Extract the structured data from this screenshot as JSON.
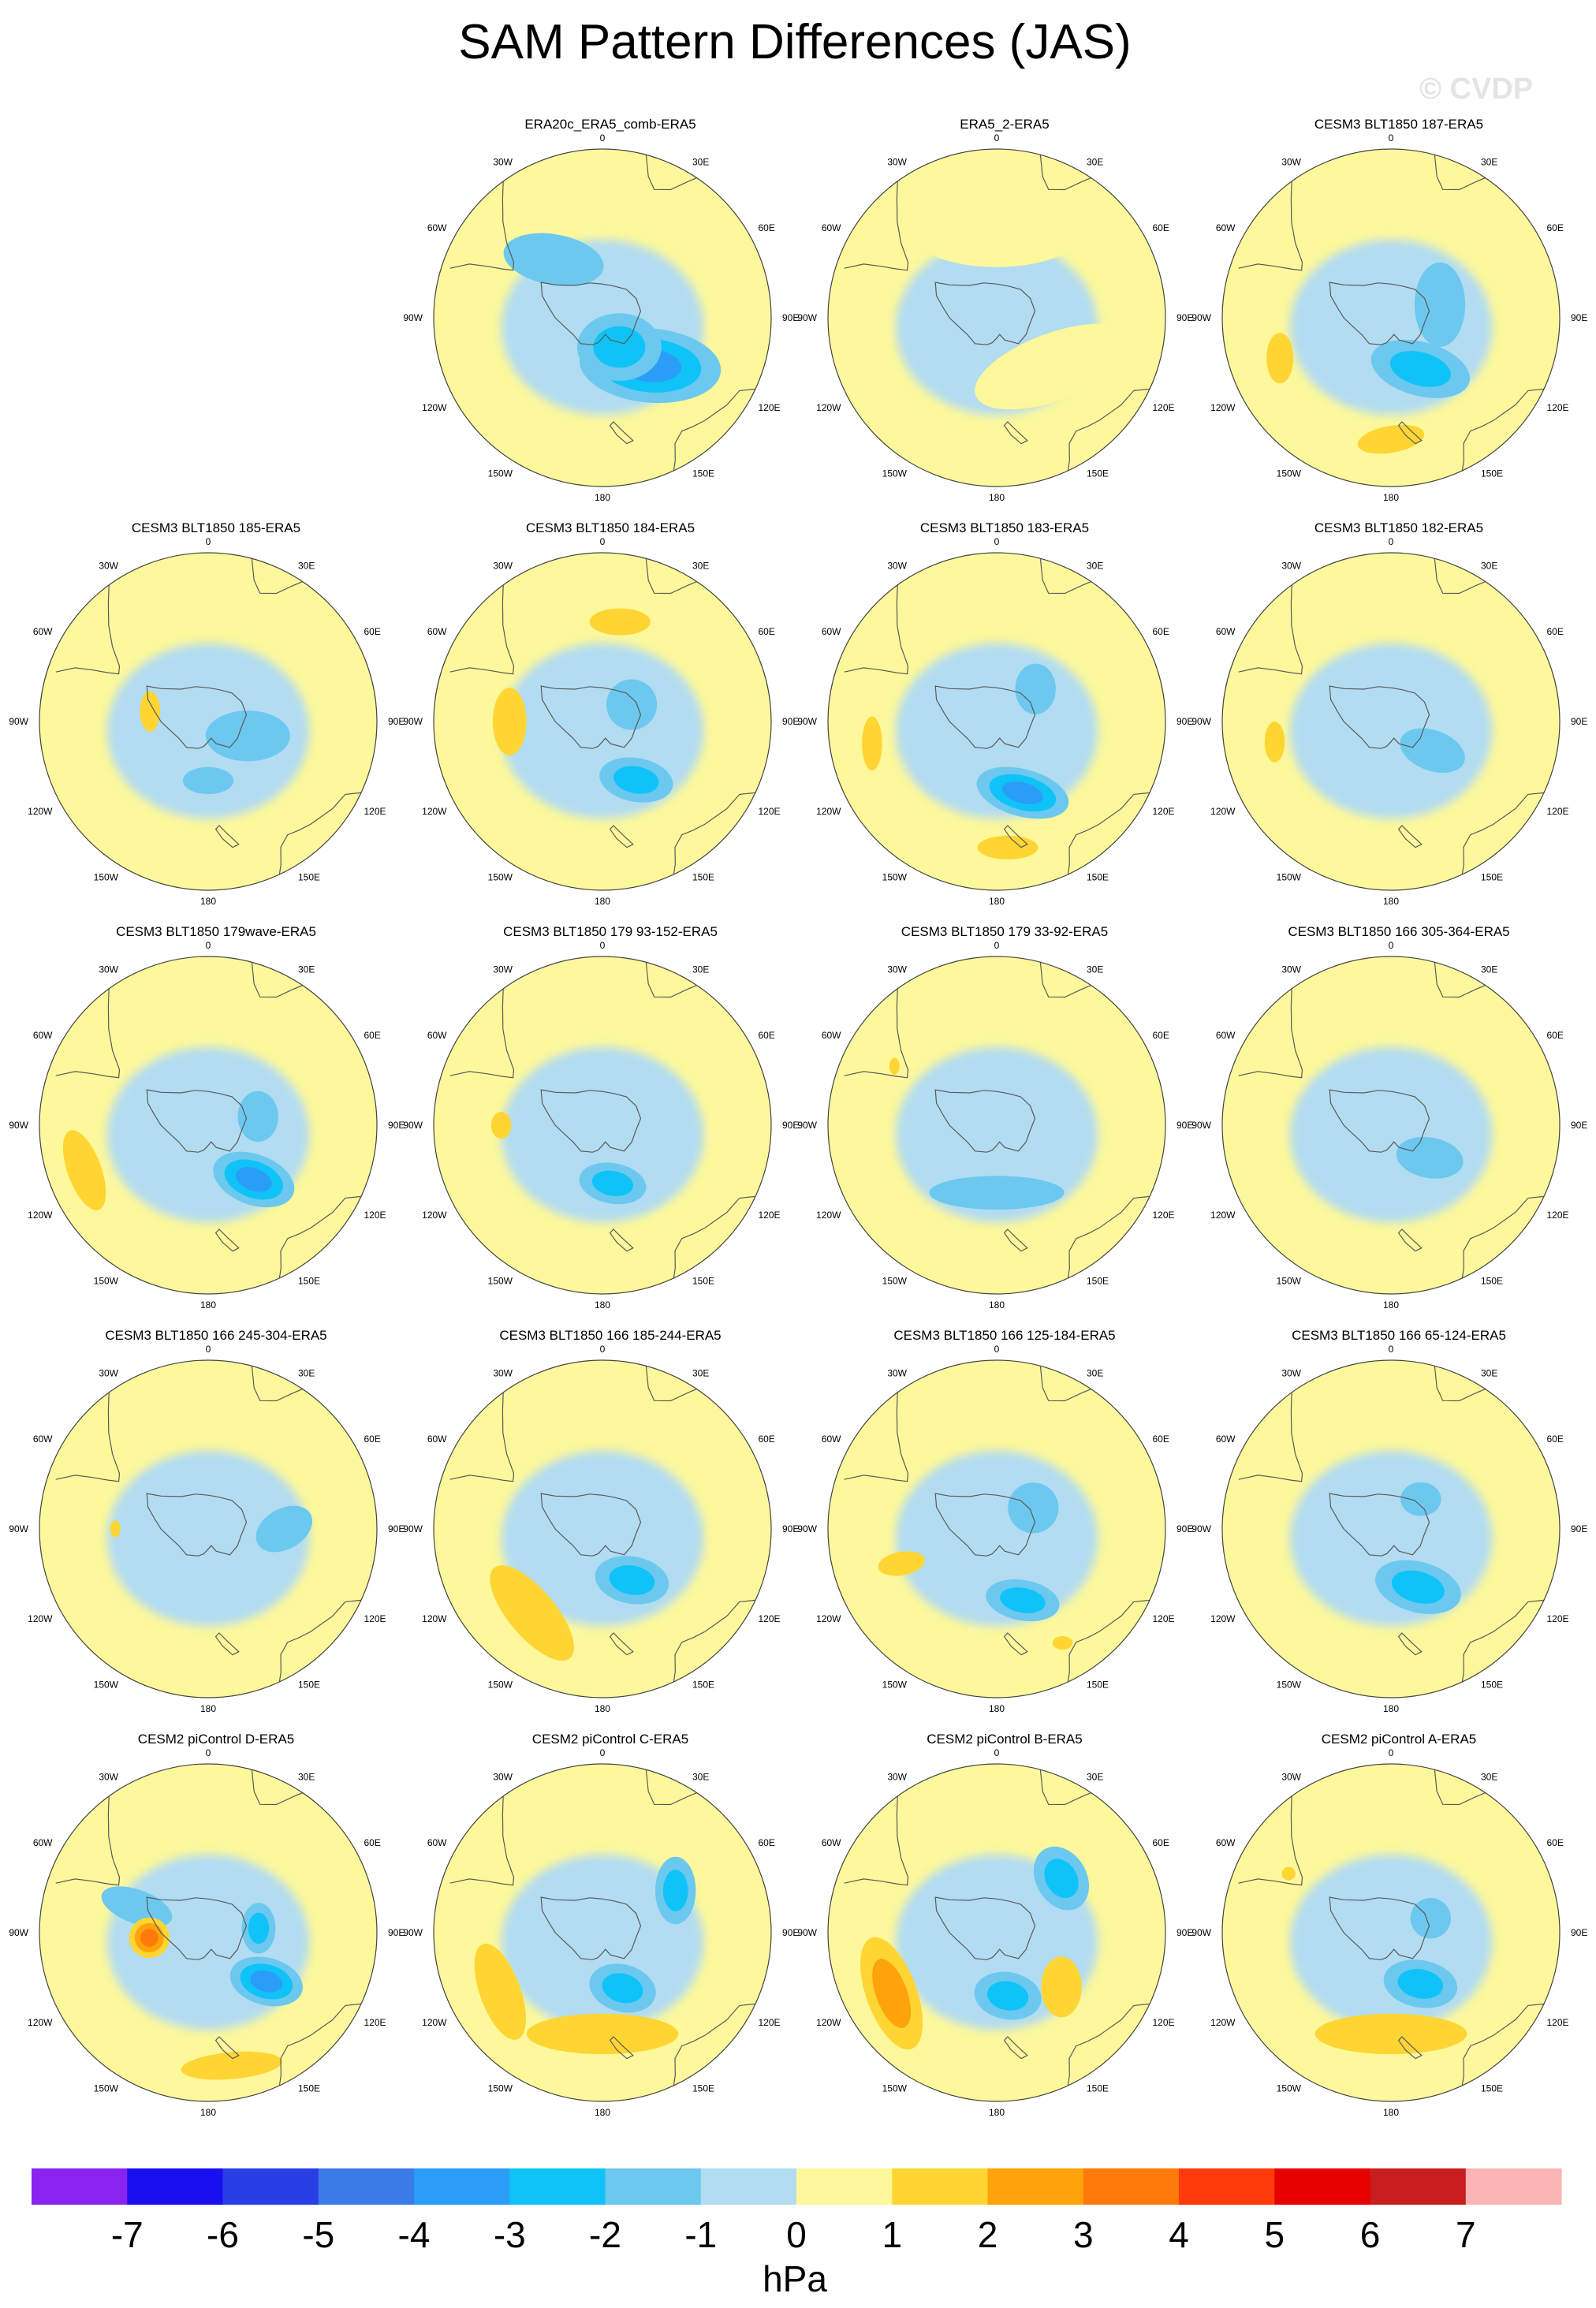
{
  "title": "SAM Pattern Differences (JAS)",
  "watermark": "© CVDP",
  "colors": {
    "land_outline": "#5a5a5a",
    "map_frame": "#444444"
  },
  "lon_labels": [
    "0",
    "30E",
    "60E",
    "90E",
    "120E",
    "150E",
    "180",
    "150W",
    "120W",
    "90W",
    "60W",
    "30W"
  ],
  "panels": [
    {
      "title": "ERA20c_ERA5_comb-ERA5",
      "row": 0,
      "col": 1,
      "features": [
        {
          "lon": 135,
          "r": 0.4,
          "val": -3.5,
          "rx": 0.42,
          "ry": 0.22,
          "rot": 5
        },
        {
          "lon": 150,
          "r": 0.2,
          "val": -3.0,
          "rx": 0.25,
          "ry": 0.2,
          "rot": 0
        },
        {
          "lon": -40,
          "r": 0.45,
          "val": -1.2,
          "rx": 0.3,
          "ry": 0.15,
          "rot": 10
        }
      ]
    },
    {
      "title": "ERA5_2-ERA5",
      "row": 0,
      "col": 2,
      "features": [
        {
          "lon": 0,
          "r": 0.55,
          "val": 0.5,
          "rx": 0.55,
          "ry": 0.25,
          "rot": 0
        },
        {
          "lon": 130,
          "r": 0.45,
          "val": 0.5,
          "rx": 0.5,
          "ry": 0.2,
          "rot": -20
        }
      ]
    },
    {
      "title": "CESM3 BLT1850 187-ERA5",
      "row": 0,
      "col": 3,
      "features": [
        {
          "lon": 150,
          "r": 0.35,
          "val": -3.0,
          "rx": 0.3,
          "ry": 0.16,
          "rot": 15
        },
        {
          "lon": 75,
          "r": 0.3,
          "val": -1.5,
          "rx": 0.15,
          "ry": 0.25,
          "rot": 0
        },
        {
          "lon": 180,
          "r": 0.72,
          "val": 1.8,
          "rx": 0.2,
          "ry": 0.08,
          "rot": -10
        },
        {
          "lon": -110,
          "r": 0.7,
          "val": 1.5,
          "rx": 0.08,
          "ry": 0.15,
          "rot": 0
        }
      ]
    },
    {
      "title": "CESM3 BLT1850 185-ERA5",
      "row": 1,
      "col": 0,
      "features": [
        {
          "lon": 110,
          "r": 0.25,
          "val": -1.5,
          "rx": 0.25,
          "ry": 0.15,
          "rot": 0
        },
        {
          "lon": 180,
          "r": 0.35,
          "val": -1.6,
          "rx": 0.15,
          "ry": 0.08,
          "rot": 0
        },
        {
          "lon": -80,
          "r": 0.35,
          "val": 1.5,
          "rx": 0.06,
          "ry": 0.12,
          "rot": 0
        }
      ]
    },
    {
      "title": "CESM3 BLT1850 184-ERA5",
      "row": 1,
      "col": 1,
      "features": [
        {
          "lon": 150,
          "r": 0.4,
          "val": -3.0,
          "rx": 0.22,
          "ry": 0.13,
          "rot": 10
        },
        {
          "lon": 60,
          "r": 0.2,
          "val": -1.8,
          "rx": 0.15,
          "ry": 0.15,
          "rot": 0
        },
        {
          "lon": -90,
          "r": 0.55,
          "val": 1.8,
          "rx": 0.1,
          "ry": 0.2,
          "rot": 0
        },
        {
          "lon": 10,
          "r": 0.6,
          "val": 1.6,
          "rx": 0.18,
          "ry": 0.08,
          "rot": 0
        }
      ]
    },
    {
      "title": "CESM3 BLT1850 183-ERA5",
      "row": 1,
      "col": 2,
      "features": [
        {
          "lon": 160,
          "r": 0.45,
          "val": -3.5,
          "rx": 0.28,
          "ry": 0.14,
          "rot": 15
        },
        {
          "lon": 50,
          "r": 0.3,
          "val": -1.5,
          "rx": 0.12,
          "ry": 0.15,
          "rot": 0
        },
        {
          "lon": -100,
          "r": 0.75,
          "val": 1.6,
          "rx": 0.06,
          "ry": 0.16,
          "rot": 0
        },
        {
          "lon": 175,
          "r": 0.75,
          "val": 1.6,
          "rx": 0.18,
          "ry": 0.07,
          "rot": 0
        }
      ]
    },
    {
      "title": "CESM3 BLT1850 182-ERA5",
      "row": 1,
      "col": 3,
      "features": [
        {
          "lon": 125,
          "r": 0.3,
          "val": -2.0,
          "rx": 0.2,
          "ry": 0.12,
          "rot": 20
        },
        {
          "lon": -100,
          "r": 0.7,
          "val": 1.5,
          "rx": 0.06,
          "ry": 0.12,
          "rot": 0
        }
      ]
    },
    {
      "title": "CESM3 BLT1850 179wave-ERA5",
      "row": 2,
      "col": 0,
      "features": [
        {
          "lon": 140,
          "r": 0.42,
          "val": -3.5,
          "rx": 0.25,
          "ry": 0.15,
          "rot": 20
        },
        {
          "lon": 80,
          "r": 0.3,
          "val": -1.5,
          "rx": 0.12,
          "ry": 0.15,
          "rot": 0
        },
        {
          "lon": -110,
          "r": 0.78,
          "val": 1.8,
          "rx": 0.1,
          "ry": 0.25,
          "rot": -20
        }
      ]
    },
    {
      "title": "CESM3 BLT1850 179 93-152-ERA5",
      "row": 2,
      "col": 1,
      "features": [
        {
          "lon": 170,
          "r": 0.35,
          "val": -3.0,
          "rx": 0.2,
          "ry": 0.12,
          "rot": 10
        },
        {
          "lon": -90,
          "r": 0.6,
          "val": 1.6,
          "rx": 0.06,
          "ry": 0.08,
          "rot": 0
        }
      ]
    },
    {
      "title": "CESM3 BLT1850 179 33-92-ERA5",
      "row": 2,
      "col": 2,
      "features": [
        {
          "lon": 180,
          "r": 0.4,
          "val": -2.0,
          "rx": 0.4,
          "ry": 0.1,
          "rot": 0
        },
        {
          "lon": -60,
          "r": 0.7,
          "val": 1.5,
          "rx": 0.03,
          "ry": 0.05,
          "rot": 0
        }
      ]
    },
    {
      "title": "CESM3 BLT1850 166 305-364-ERA5",
      "row": 2,
      "col": 3,
      "features": [
        {
          "lon": 130,
          "r": 0.3,
          "val": -1.6,
          "rx": 0.2,
          "ry": 0.12,
          "rot": 10
        }
      ]
    },
    {
      "title": "CESM3 BLT1850 166 245-304-ERA5",
      "row": 3,
      "col": 0,
      "features": [
        {
          "lon": 90,
          "r": 0.45,
          "val": -1.6,
          "rx": 0.18,
          "ry": 0.12,
          "rot": -30
        },
        {
          "lon": -90,
          "r": 0.55,
          "val": 1.5,
          "rx": 0.03,
          "ry": 0.05,
          "rot": 0
        }
      ]
    },
    {
      "title": "CESM3 BLT1850 166 185-244-ERA5",
      "row": 3,
      "col": 1,
      "features": [
        {
          "lon": 150,
          "r": 0.35,
          "val": -3.2,
          "rx": 0.22,
          "ry": 0.14,
          "rot": 10
        },
        {
          "lon": -140,
          "r": 0.65,
          "val": 1.6,
          "rx": 0.14,
          "ry": 0.35,
          "rot": -40
        }
      ]
    },
    {
      "title": "CESM3 BLT1850 166 125-184-ERA5",
      "row": 3,
      "col": 2,
      "features": [
        {
          "lon": 160,
          "r": 0.45,
          "val": -2.5,
          "rx": 0.22,
          "ry": 0.12,
          "rot": 10
        },
        {
          "lon": 60,
          "r": 0.25,
          "val": -1.5,
          "rx": 0.15,
          "ry": 0.15,
          "rot": 0
        },
        {
          "lon": -110,
          "r": 0.6,
          "val": 1.8,
          "rx": 0.14,
          "ry": 0.07,
          "rot": -10
        },
        {
          "lon": 150,
          "r": 0.78,
          "val": 1.5,
          "rx": 0.06,
          "ry": 0.04,
          "rot": 0
        }
      ]
    },
    {
      "title": "CESM3 BLT1850 166 65-124-ERA5",
      "row": 3,
      "col": 3,
      "features": [
        {
          "lon": 155,
          "r": 0.38,
          "val": -3.2,
          "rx": 0.26,
          "ry": 0.15,
          "rot": 15
        },
        {
          "lon": 45,
          "r": 0.25,
          "val": -1.5,
          "rx": 0.12,
          "ry": 0.1,
          "rot": 0
        }
      ]
    },
    {
      "title": "CESM2 piControl D-ERA5",
      "row": 4,
      "col": 0,
      "features": [
        {
          "lon": 130,
          "r": 0.45,
          "val": -3.5,
          "rx": 0.22,
          "ry": 0.14,
          "rot": 15
        },
        {
          "lon": 85,
          "r": 0.3,
          "val": -3.0,
          "rx": 0.1,
          "ry": 0.15,
          "rot": 0
        },
        {
          "lon": -70,
          "r": 0.45,
          "val": -1.6,
          "rx": 0.22,
          "ry": 0.1,
          "rot": 20
        },
        {
          "lon": -95,
          "r": 0.35,
          "val": 3.5,
          "rx": 0.12,
          "ry": 0.12,
          "rot": 0
        },
        {
          "lon": 170,
          "r": 0.8,
          "val": 2.2,
          "rx": 0.3,
          "ry": 0.08,
          "rot": -5
        }
      ]
    },
    {
      "title": "CESM2 piControl C-ERA5",
      "row": 4,
      "col": 1,
      "features": [
        {
          "lon": 160,
          "r": 0.35,
          "val": -3.2,
          "rx": 0.2,
          "ry": 0.14,
          "rot": 15
        },
        {
          "lon": 60,
          "r": 0.5,
          "val": -3.0,
          "rx": 0.12,
          "ry": 0.2,
          "rot": 0
        },
        {
          "lon": 180,
          "r": 0.6,
          "val": 2.2,
          "rx": 0.45,
          "ry": 0.12,
          "rot": 0
        },
        {
          "lon": -120,
          "r": 0.7,
          "val": 1.8,
          "rx": 0.12,
          "ry": 0.3,
          "rot": -20
        }
      ]
    },
    {
      "title": "CESM2 piControl B-ERA5",
      "row": 4,
      "col": 2,
      "features": [
        {
          "lon": 170,
          "r": 0.38,
          "val": -3.2,
          "rx": 0.2,
          "ry": 0.14,
          "rot": 10
        },
        {
          "lon": 50,
          "r": 0.5,
          "val": -3.0,
          "rx": 0.15,
          "ry": 0.2,
          "rot": -30
        },
        {
          "lon": -120,
          "r": 0.72,
          "val": 2.6,
          "rx": 0.15,
          "ry": 0.35,
          "rot": -20
        },
        {
          "lon": 130,
          "r": 0.5,
          "val": 1.6,
          "rx": 0.12,
          "ry": 0.18,
          "rot": 0
        }
      ]
    },
    {
      "title": "CESM2 piControl A-ERA5",
      "row": 4,
      "col": 3,
      "features": [
        {
          "lon": 150,
          "r": 0.35,
          "val": -3.2,
          "rx": 0.22,
          "ry": 0.14,
          "rot": 10
        },
        {
          "lon": 70,
          "r": 0.25,
          "val": -2.0,
          "rx": 0.12,
          "ry": 0.12,
          "rot": 0
        },
        {
          "lon": 180,
          "r": 0.6,
          "val": 1.9,
          "rx": 0.45,
          "ry": 0.12,
          "rot": 0
        },
        {
          "lon": -60,
          "r": 0.7,
          "val": 1.5,
          "rx": 0.04,
          "ry": 0.04,
          "rot": 0
        }
      ]
    }
  ],
  "colorbar": {
    "units": "hPa",
    "ticks": [
      "-7",
      "-6",
      "-5",
      "-4",
      "-3",
      "-2",
      "-1",
      "0",
      "1",
      "2",
      "3",
      "4",
      "5",
      "6",
      "7"
    ],
    "colors": [
      "#8a22f0",
      "#1a0ff0",
      "#2a3ee6",
      "#3a7be8",
      "#2a9ef6",
      "#0fc3f8",
      "#6cc8ee",
      "#b2dcf2",
      "#fdf89b",
      "#fed533",
      "#ffa30a",
      "#ff7a0a",
      "#ff3a0a",
      "#e60000",
      "#c81e1e",
      "#fdb4b4"
    ]
  }
}
